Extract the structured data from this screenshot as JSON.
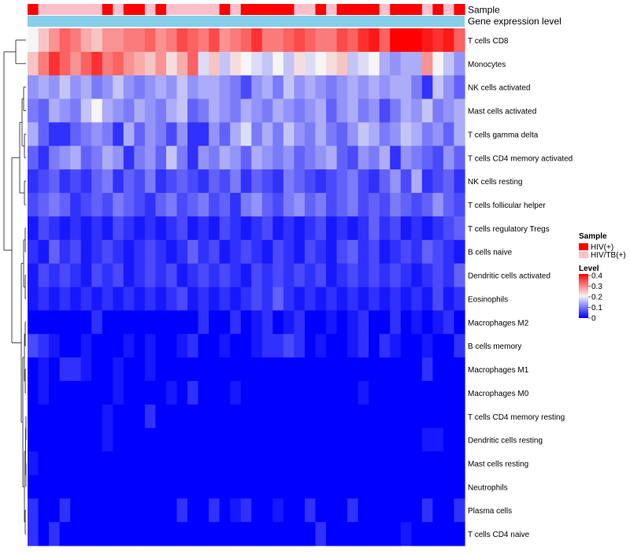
{
  "chart_data": {
    "type": "heatmap",
    "title": "",
    "annotation_labels": {
      "sample": "Sample",
      "gene": "Gene expression level"
    },
    "legend": {
      "sample_title": "Sample",
      "sample_entries": [
        {
          "label": "HIV(+)",
          "color": "#ff0000"
        },
        {
          "label": "HIV/TB(+)",
          "color": "#ffc0cb"
        }
      ],
      "level_title": "Level",
      "level_ticks": [
        "0.4",
        "0.3",
        "0.2",
        "0.1",
        "0"
      ],
      "level_range": [
        0,
        0.4
      ],
      "colors": {
        "low": "#0000ff",
        "mid": "#f5f5f5",
        "high": "#ff0000"
      }
    },
    "gene_bar_color": "#87ceeb",
    "columns": 41,
    "sample_groups": "RPPPPPPRPRRPRPPPPPRPRRRRRPPRPRRRRPRRRPRPR",
    "rows": [
      {
        "name": "T cells CD8",
        "values": [
          0.2,
          0.24,
          0.28,
          0.32,
          0.3,
          0.26,
          0.24,
          0.28,
          0.28,
          0.3,
          0.3,
          0.32,
          0.28,
          0.3,
          0.34,
          0.32,
          0.3,
          0.34,
          0.28,
          0.3,
          0.32,
          0.36,
          0.3,
          0.3,
          0.32,
          0.34,
          0.32,
          0.3,
          0.3,
          0.34,
          0.32,
          0.36,
          0.38,
          0.32,
          0.4,
          0.4,
          0.4,
          0.38,
          0.36,
          0.38,
          0.32
        ]
      },
      {
        "name": "Monocytes",
        "values": [
          0.24,
          0.3,
          0.36,
          0.32,
          0.28,
          0.32,
          0.36,
          0.3,
          0.32,
          0.28,
          0.26,
          0.24,
          0.28,
          0.22,
          0.26,
          0.32,
          0.18,
          0.24,
          0.16,
          0.22,
          0.2,
          0.18,
          0.16,
          0.2,
          0.16,
          0.22,
          0.18,
          0.2,
          0.22,
          0.24,
          0.16,
          0.18,
          0.2,
          0.14,
          0.12,
          0.14,
          0.14,
          0.28,
          0.2,
          0.16,
          0.12
        ]
      },
      {
        "name": "NK cells activated",
        "values": [
          0.12,
          0.14,
          0.12,
          0.16,
          0.12,
          0.14,
          0.1,
          0.12,
          0.16,
          0.12,
          0.1,
          0.12,
          0.14,
          0.12,
          0.16,
          0.12,
          0.14,
          0.14,
          0.12,
          0.1,
          0.06,
          0.12,
          0.14,
          0.1,
          0.16,
          0.12,
          0.14,
          0.12,
          0.1,
          0.12,
          0.14,
          0.12,
          0.14,
          0.12,
          0.14,
          0.14,
          0.1,
          0.04,
          0.16,
          0.12,
          0.08
        ]
      },
      {
        "name": "Mast cells activated",
        "values": [
          0.1,
          0.08,
          0.14,
          0.12,
          0.1,
          0.16,
          0.2,
          0.14,
          0.12,
          0.1,
          0.14,
          0.12,
          0.1,
          0.14,
          0.16,
          0.08,
          0.1,
          0.14,
          0.12,
          0.1,
          0.14,
          0.12,
          0.1,
          0.14,
          0.12,
          0.1,
          0.12,
          0.14,
          0.08,
          0.12,
          0.14,
          0.1,
          0.12,
          0.06,
          0.1,
          0.14,
          0.12,
          0.16,
          0.1,
          0.12,
          0.14
        ]
      },
      {
        "name": "T cells gamma delta",
        "values": [
          0.14,
          0.08,
          0.04,
          0.04,
          0.08,
          0.1,
          0.12,
          0.1,
          0.04,
          0.14,
          0.08,
          0.12,
          0.1,
          0.06,
          0.12,
          0.04,
          0.04,
          0.12,
          0.08,
          0.14,
          0.18,
          0.1,
          0.14,
          0.1,
          0.16,
          0.12,
          0.1,
          0.14,
          0.1,
          0.08,
          0.12,
          0.16,
          0.14,
          0.1,
          0.12,
          0.16,
          0.14,
          0.1,
          0.12,
          0.08,
          0.14
        ]
      },
      {
        "name": "T cells CD4 memory activated",
        "values": [
          0.08,
          0.04,
          0.1,
          0.12,
          0.14,
          0.08,
          0.1,
          0.14,
          0.12,
          0.04,
          0.1,
          0.12,
          0.08,
          0.16,
          0.1,
          0.04,
          0.12,
          0.1,
          0.14,
          0.12,
          0.08,
          0.14,
          0.12,
          0.1,
          0.12,
          0.08,
          0.1,
          0.12,
          0.14,
          0.08,
          0.06,
          0.12,
          0.1,
          0.14,
          0.04,
          0.12,
          0.1,
          0.08,
          0.06,
          0.12,
          0.08
        ]
      },
      {
        "name": "NK cells resting",
        "values": [
          0.04,
          0.06,
          0.08,
          0.04,
          0.06,
          0.04,
          0.08,
          0.1,
          0.04,
          0.08,
          0.06,
          0.1,
          0.04,
          0.06,
          0.08,
          0.06,
          0.04,
          0.08,
          0.06,
          0.1,
          0.04,
          0.08,
          0.06,
          0.04,
          0.1,
          0.08,
          0.06,
          0.04,
          0.06,
          0.08,
          0.1,
          0.06,
          0.04,
          0.08,
          0.12,
          0.06,
          0.14,
          0.04,
          0.06,
          0.08,
          0.04
        ]
      },
      {
        "name": "T cells follicular helper",
        "values": [
          0.06,
          0.08,
          0.1,
          0.08,
          0.04,
          0.06,
          0.08,
          0.06,
          0.1,
          0.08,
          0.06,
          0.04,
          0.08,
          0.1,
          0.06,
          0.08,
          0.1,
          0.06,
          0.08,
          0.04,
          0.1,
          0.12,
          0.08,
          0.06,
          0.1,
          0.12,
          0.08,
          0.1,
          0.06,
          0.08,
          0.1,
          0.06,
          0.08,
          0.06,
          0.1,
          0.08,
          0.06,
          0.08,
          0.12,
          0.08,
          0.06
        ]
      },
      {
        "name": "T cells regulatory  Tregs",
        "values": [
          0.02,
          0.06,
          0.04,
          0.02,
          0.04,
          0.02,
          0.04,
          0.02,
          0.06,
          0.04,
          0.02,
          0.04,
          0.02,
          0.04,
          0.06,
          0.02,
          0.04,
          0.02,
          0.06,
          0.04,
          0.02,
          0.04,
          0.06,
          0.02,
          0.04,
          0.02,
          0.04,
          0.06,
          0.02,
          0.04,
          0.02,
          0.04,
          0.08,
          0.04,
          0.06,
          0.02,
          0.04,
          0.02,
          0.04,
          0.06,
          0.08
        ]
      },
      {
        "name": "B cells naive",
        "values": [
          0.04,
          0.02,
          0.08,
          0.04,
          0.06,
          0.02,
          0.04,
          0.06,
          0.04,
          0.02,
          0.04,
          0.06,
          0.04,
          0.02,
          0.04,
          0.08,
          0.04,
          0.06,
          0.02,
          0.04,
          0.06,
          0.04,
          0.02,
          0.06,
          0.04,
          0.02,
          0.06,
          0.04,
          0.02,
          0.06,
          0.08,
          0.04,
          0.06,
          0.02,
          0.04,
          0.06,
          0.04,
          0.08,
          0.06,
          0.04,
          0.02
        ]
      },
      {
        "name": "Dendritic cells activated",
        "values": [
          0.02,
          0.06,
          0.04,
          0.06,
          0.04,
          0.02,
          0.06,
          0.04,
          0.06,
          0.02,
          0.04,
          0.06,
          0.04,
          0.06,
          0.02,
          0.04,
          0.06,
          0.04,
          0.06,
          0.04,
          0.02,
          0.06,
          0.04,
          0.06,
          0.04,
          0.06,
          0.04,
          0.06,
          0.02,
          0.04,
          0.06,
          0.04,
          0.06,
          0.04,
          0.06,
          0.04,
          0.02,
          0.04,
          0.06,
          0.04,
          0.08
        ]
      },
      {
        "name": "Eosinophils",
        "values": [
          0.02,
          0.04,
          0.02,
          0.04,
          0.02,
          0.04,
          0.02,
          0.04,
          0.02,
          0.04,
          0.02,
          0.04,
          0.02,
          0.04,
          0.06,
          0.02,
          0.04,
          0.02,
          0.04,
          0.02,
          0.04,
          0.06,
          0.04,
          0.08,
          0.04,
          0.02,
          0.04,
          0.02,
          0.04,
          0.02,
          0.04,
          0.02,
          0.04,
          0.02,
          0.04,
          0.02,
          0.04,
          0.02,
          0.06,
          0.02,
          0.04
        ]
      },
      {
        "name": "Macrophages M2",
        "values": [
          0.0,
          0.0,
          0.0,
          0.0,
          0.0,
          0.0,
          0.04,
          0.0,
          0.0,
          0.0,
          0.0,
          0.0,
          0.0,
          0.0,
          0.0,
          0.0,
          0.04,
          0.0,
          0.0,
          0.04,
          0.0,
          0.02,
          0.04,
          0.0,
          0.02,
          0.04,
          0.0,
          0.0,
          0.02,
          0.0,
          0.02,
          0.04,
          0.0,
          0.0,
          0.04,
          0.0,
          0.02,
          0.0,
          0.02,
          0.04,
          0.0
        ]
      },
      {
        "name": "B cells memory",
        "values": [
          0.06,
          0.04,
          0.02,
          0.0,
          0.0,
          0.02,
          0.0,
          0.0,
          0.0,
          0.02,
          0.0,
          0.02,
          0.0,
          0.0,
          0.02,
          0.04,
          0.0,
          0.0,
          0.02,
          0.0,
          0.0,
          0.02,
          0.04,
          0.04,
          0.06,
          0.04,
          0.0,
          0.02,
          0.0,
          0.0,
          0.02,
          0.04,
          0.0,
          0.04,
          0.02,
          0.0,
          0.0,
          0.02,
          0.0,
          0.0,
          0.04
        ]
      },
      {
        "name": "Macrophages M1",
        "values": [
          0.0,
          0.02,
          0.0,
          0.04,
          0.04,
          0.02,
          0.0,
          0.0,
          0.02,
          0.0,
          0.0,
          0.02,
          0.0,
          0.0,
          0.0,
          0.0,
          0.0,
          0.0,
          0.0,
          0.0,
          0.0,
          0.0,
          0.0,
          0.0,
          0.0,
          0.0,
          0.0,
          0.0,
          0.0,
          0.0,
          0.0,
          0.0,
          0.0,
          0.0,
          0.0,
          0.0,
          0.0,
          0.04,
          0.0,
          0.0,
          0.0
        ]
      },
      {
        "name": "Macrophages M0",
        "values": [
          0.0,
          0.02,
          0.0,
          0.0,
          0.0,
          0.0,
          0.0,
          0.0,
          0.02,
          0.0,
          0.0,
          0.0,
          0.0,
          0.02,
          0.0,
          0.04,
          0.0,
          0.0,
          0.0,
          0.02,
          0.0,
          0.0,
          0.0,
          0.0,
          0.0,
          0.0,
          0.0,
          0.0,
          0.0,
          0.0,
          0.0,
          0.02,
          0.0,
          0.0,
          0.0,
          0.0,
          0.0,
          0.0,
          0.0,
          0.0,
          0.0
        ]
      },
      {
        "name": "T cells CD4 memory resting",
        "values": [
          0.0,
          0.0,
          0.0,
          0.0,
          0.0,
          0.0,
          0.0,
          0.02,
          0.0,
          0.0,
          0.0,
          0.04,
          0.0,
          0.0,
          0.0,
          0.0,
          0.0,
          0.0,
          0.0,
          0.0,
          0.0,
          0.0,
          0.0,
          0.0,
          0.0,
          0.0,
          0.0,
          0.0,
          0.0,
          0.0,
          0.0,
          0.0,
          0.0,
          0.0,
          0.0,
          0.0,
          0.0,
          0.0,
          0.0,
          0.0,
          0.0
        ]
      },
      {
        "name": "Dendritic cells resting",
        "values": [
          0.0,
          0.0,
          0.0,
          0.0,
          0.0,
          0.0,
          0.0,
          0.02,
          0.0,
          0.0,
          0.0,
          0.0,
          0.0,
          0.0,
          0.0,
          0.0,
          0.0,
          0.0,
          0.0,
          0.0,
          0.0,
          0.0,
          0.0,
          0.0,
          0.0,
          0.0,
          0.0,
          0.0,
          0.0,
          0.0,
          0.0,
          0.0,
          0.0,
          0.0,
          0.0,
          0.0,
          0.0,
          0.02,
          0.02,
          0.0,
          0.0
        ]
      },
      {
        "name": "Mast cells resting",
        "values": [
          0.02,
          0.0,
          0.0,
          0.0,
          0.0,
          0.0,
          0.0,
          0.0,
          0.0,
          0.0,
          0.0,
          0.0,
          0.0,
          0.0,
          0.0,
          0.0,
          0.0,
          0.0,
          0.0,
          0.0,
          0.0,
          0.0,
          0.0,
          0.0,
          0.0,
          0.0,
          0.0,
          0.0,
          0.0,
          0.0,
          0.0,
          0.0,
          0.0,
          0.0,
          0.0,
          0.0,
          0.0,
          0.0,
          0.0,
          0.0,
          0.0
        ]
      },
      {
        "name": "Neutrophils",
        "values": [
          0.0,
          0.0,
          0.0,
          0.0,
          0.0,
          0.0,
          0.0,
          0.0,
          0.0,
          0.0,
          0.0,
          0.0,
          0.0,
          0.0,
          0.0,
          0.0,
          0.0,
          0.0,
          0.0,
          0.0,
          0.0,
          0.0,
          0.0,
          0.0,
          0.0,
          0.0,
          0.0,
          0.0,
          0.0,
          0.0,
          0.0,
          0.0,
          0.0,
          0.0,
          0.0,
          0.0,
          0.0,
          0.0,
          0.0,
          0.0,
          0.0
        ]
      },
      {
        "name": "Plasma cells",
        "values": [
          0.04,
          0.0,
          0.0,
          0.04,
          0.0,
          0.0,
          0.0,
          0.0,
          0.0,
          0.0,
          0.0,
          0.0,
          0.0,
          0.0,
          0.04,
          0.0,
          0.0,
          0.04,
          0.0,
          0.02,
          0.04,
          0.0,
          0.0,
          0.02,
          0.0,
          0.0,
          0.04,
          0.0,
          0.0,
          0.0,
          0.04,
          0.0,
          0.0,
          0.0,
          0.0,
          0.0,
          0.0,
          0.04,
          0.0,
          0.0,
          0.04
        ]
      },
      {
        "name": "T cells CD4 naive",
        "values": [
          0.04,
          0.0,
          0.04,
          0.0,
          0.0,
          0.0,
          0.0,
          0.0,
          0.0,
          0.0,
          0.0,
          0.0,
          0.0,
          0.0,
          0.0,
          0.0,
          0.0,
          0.0,
          0.0,
          0.0,
          0.0,
          0.0,
          0.0,
          0.0,
          0.0,
          0.0,
          0.0,
          0.04,
          0.0,
          0.0,
          0.0,
          0.0,
          0.0,
          0.0,
          0.0,
          0.02,
          0.0,
          0.0,
          0.0,
          0.0,
          0.0
        ]
      }
    ]
  }
}
